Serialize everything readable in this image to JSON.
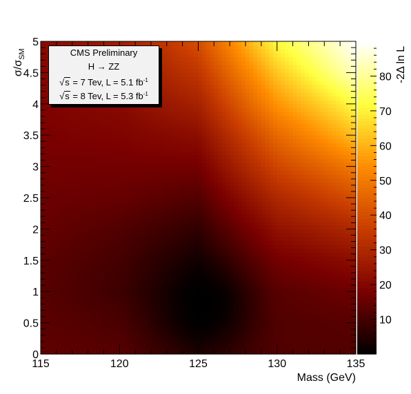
{
  "chart_data": {
    "type": "heatmap",
    "xlabel": "Mass (GeV)",
    "ylabel": "σ/σ",
    "ylabel_sub": "SM",
    "zlabel": "-2Δ ln L",
    "xlim": [
      115,
      135
    ],
    "ylim": [
      0,
      5
    ],
    "zlim": [
      0,
      90
    ],
    "x_ticks": [
      "115",
      "120",
      "125",
      "130",
      "135"
    ],
    "y_ticks": [
      "0",
      "0.5",
      "1",
      "1.5",
      "2",
      "2.5",
      "3",
      "3.5",
      "4",
      "4.5",
      "5"
    ],
    "z_ticks": [
      "10",
      "20",
      "30",
      "40",
      "50",
      "60",
      "70",
      "80"
    ],
    "colormap": [
      "#000000",
      "#7a0000",
      "#c83c00",
      "#ff8c00",
      "#ffff40",
      "#ffffff"
    ],
    "minimum": {
      "x": 125.5,
      "y": 0.8,
      "z": 0
    },
    "grid": [
      {
        "x": 115,
        "values": [
          14,
          13.5,
          13,
          13.5,
          15,
          16,
          17,
          18,
          19,
          20,
          21
        ]
      },
      {
        "x": 120,
        "values": [
          13,
          11,
          9,
          10,
          12,
          15,
          17,
          19,
          21,
          24,
          27
        ]
      },
      {
        "x": 125,
        "values": [
          5,
          1,
          0.5,
          3,
          7,
          12,
          17,
          22,
          28,
          34,
          40
        ]
      },
      {
        "x": 130,
        "values": [
          12,
          12,
          13,
          17,
          23,
          30,
          38,
          46,
          55,
          63,
          72
        ]
      },
      {
        "x": 135,
        "values": [
          12,
          13,
          16,
          22,
          30,
          40,
          50,
          62,
          72,
          84,
          90
        ]
      }
    ],
    "legend": {
      "title": "CMS Preliminary",
      "process": "H → ZZ",
      "line1_pre": "s",
      "line1_post": " = 7 Tev, L = 5.1 fb",
      "line1_exp": "-1",
      "line2_pre": "s",
      "line2_post": " = 8 Tev, L = 5.3 fb",
      "line2_exp": "-1"
    }
  }
}
